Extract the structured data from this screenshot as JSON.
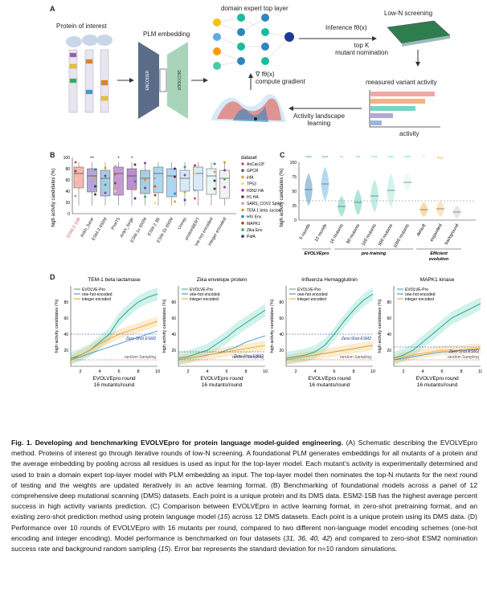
{
  "panel_labels": {
    "a": "A",
    "b": "B",
    "c": "C",
    "d": "D"
  },
  "panel_a": {
    "protein_title": "Protein of interest",
    "plm_title": "PLM embedding",
    "expert_title": "domain expert top layer",
    "inference_label": "Inference fθ(x)",
    "topk_label": "top K\nmutant nomination",
    "lown_title": "Low-N screening",
    "measured_title": "measured variant activity",
    "activity_label": "activity",
    "gradient_label": "∇ fθ(x)\ncompute gradient",
    "landscape_label": "Activity landscape\nlearning",
    "encoder_text": "ENCODER",
    "decoder_text": "DECODER",
    "bar_colors": [
      "#f4a6a6",
      "#f4b183",
      "#7fd1c7",
      "#b4a7d6",
      "#9bb7e0"
    ]
  },
  "panel_b": {
    "ylabel": "high activity candidates (%)",
    "yticks": [
      "100",
      "80",
      "60",
      "40",
      "20",
      "0"
    ],
    "models": [
      "ESM-2 15B",
      "Ankh_base",
      "ESM-2 650M",
      "ProtT5",
      "Ankh_large",
      "ESM-1v 650M",
      "ESM-2 3B",
      "ESM-1b 650M",
      "Unirep",
      "proteinBERT",
      "one-hot encoded",
      "integer encoded"
    ],
    "highlight_model": "ESM-2 15B",
    "sig_marks": [
      "",
      "**",
      "",
      "*",
      "*",
      "",
      "",
      "",
      "",
      "",
      "",
      ""
    ],
    "legend_title": "dataset",
    "legend": [
      {
        "name": "AsCas12f",
        "color": "#d9534f"
      },
      {
        "name": "GPCR",
        "color": "#6a4c93"
      },
      {
        "name": "infA",
        "color": "#e6a23c"
      },
      {
        "name": "TP53",
        "color": "#f7d774"
      },
      {
        "name": "H3N2 HA",
        "color": "#8e44ad"
      },
      {
        "name": "H1 HA",
        "color": "#7b241c"
      },
      {
        "name": "SARS_COV2 Spike",
        "color": "#aaaaaa"
      },
      {
        "name": "TEM-1 beta -lactamase",
        "color": "#d4a017"
      },
      {
        "name": "HIV Env",
        "color": "#2e86c1"
      },
      {
        "name": "MAPK1",
        "color": "#c0392b"
      },
      {
        "name": "Zika Env",
        "color": "#27ae60"
      },
      {
        "name": "PafA",
        "color": "#1f3a93"
      }
    ]
  },
  "panel_c": {
    "ylabel": "high activity candidates (%)",
    "yticks": [
      "100",
      "75",
      "50",
      "25",
      "0"
    ],
    "groups": [
      "5 rounds",
      "10 rounds",
      "16 mutants",
      "80 mutants",
      "160 mutants",
      "500 mutants",
      "1000 mutants",
      "default",
      "expanded",
      "background"
    ],
    "sig_marks": [
      "****",
      "****",
      "**",
      "***",
      "****",
      "****",
      "****",
      "*",
      "n.s.",
      ""
    ],
    "section_labels": [
      "EVOLVEpro",
      "pre-training",
      "Efficient\nevolution"
    ]
  },
  "panel_d": {
    "panels": [
      {
        "title": "TEM-1 beta lactamase"
      },
      {
        "title": "Zika envelope protein"
      },
      {
        "title": "Influenza Hemagglutinin"
      },
      {
        "title": "MAPK1 kinase"
      }
    ],
    "ylabel": "high activity candidates (%)",
    "xlabel": "EVOLVEpro round",
    "xsub": "16 mutants/round",
    "xticks": [
      "2",
      "4",
      "6",
      "8",
      "10"
    ],
    "yticks": [
      "80",
      "60",
      "40",
      "20"
    ],
    "legend": [
      "EVOLVE-Pro",
      "one-hot encoded",
      "integer encoded"
    ],
    "zero_shot_label": "Zero-Shot ESM2",
    "random_label": "random Sampling"
  },
  "caption": {
    "title": "Fig. 1. Developing and benchmarking EVOLVEpro for protein language model-guided engineering.",
    "body_a": " (A) Schematic describing the EVOLVEpro method. Proteins of interest go through iterative rounds of low-N screening. A foundational PLM generates embeddings for all mutants of a protein and the average embedding by pooling across all residues is used as input for the top-layer model. Each mutant’s activity is experimentally determined and used to train a domain expert top-layer model with PLM embedding as input. The top-layer model then nominates the top-N mutants for the next round of testing and the weights are updated iteratively in an active learning format.",
    "body_b": " (B) Benchmarking of foundational models across a panel of 12 comprehensive deep mutational scanning (DMS) datasets. Each point is a unique protein and its DMS data. ESM2-15B has the highest average percent success in high activity variants prediction.",
    "body_c1": " (C) Comparison between EVOLVEpro in active learning format, in zero-shot pretraining format, and an existing zero-shot prediction method using protein language model (",
    "ref_c": "15",
    "body_c2": ") across 12 DMS datasets. Each point is a unique protein using its DMS data.",
    "body_d1": " (D) Performance over 10 rounds of EVOLVEpro with 16 mutants per round, compared to two different non-language model encoding schemes (one-hot encoding and integer encoding). Model performance is benchmarked on four datasets (",
    "ref_d1": "31, 36, 40, 42",
    "body_d2": ") and compared to zero-shot ESM2 nomination success rate and background random sampling (",
    "ref_d2": "15",
    "body_d3": "). Error bar represents the standard deviation for n=10 random simulations."
  }
}
